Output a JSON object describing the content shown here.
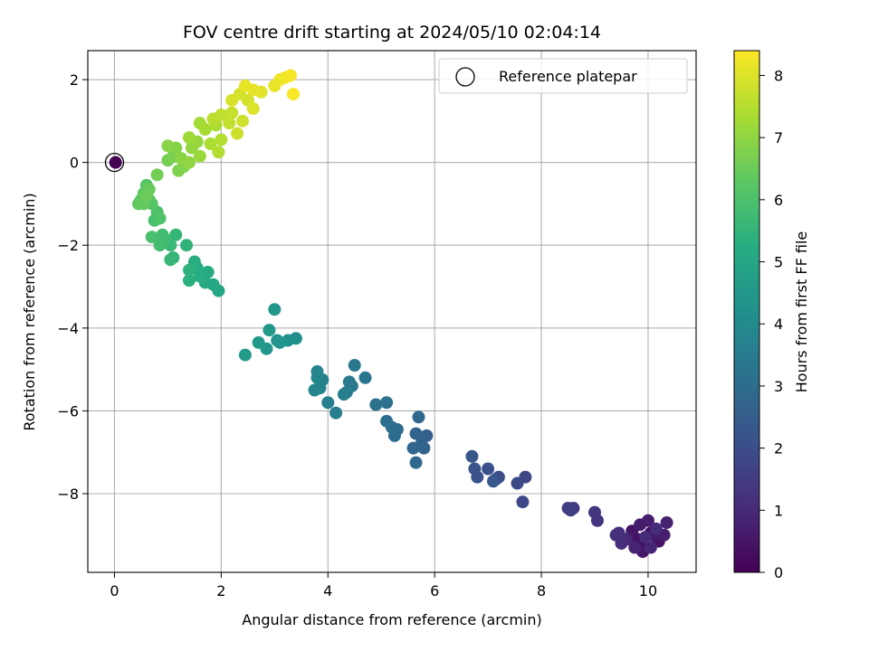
{
  "chart_data": {
    "type": "scatter",
    "title": "FOV centre drift starting at 2024/05/10 02:04:14",
    "xlabel": "Angular distance from reference (arcmin)",
    "ylabel": "Rotation from reference (arcmin)",
    "xlim": [
      -0.5,
      10.9
    ],
    "ylim": [
      -9.9,
      2.7
    ],
    "xticks": [
      0,
      2,
      4,
      6,
      8,
      10
    ],
    "yticks": [
      2,
      0,
      -2,
      -4,
      -6,
      -8
    ],
    "grid": true,
    "legend": {
      "label": "Reference platepar",
      "location": "upper right"
    },
    "reference_point": {
      "x": 0,
      "y": 0
    },
    "colorbar": {
      "label": "Hours from first FF file",
      "colormap": "viridis",
      "range": [
        0,
        8.4
      ],
      "ticks": [
        0,
        1,
        2,
        3,
        4,
        5,
        6,
        7,
        8
      ]
    },
    "points": [
      {
        "x": 0.02,
        "y": 0.0,
        "c": 0.0
      },
      {
        "x": 9.95,
        "y": -9.25,
        "c": 0.3
      },
      {
        "x": 10.05,
        "y": -8.95,
        "c": 0.35
      },
      {
        "x": 9.8,
        "y": -9.1,
        "c": 0.4
      },
      {
        "x": 10.2,
        "y": -9.15,
        "c": 0.45
      },
      {
        "x": 9.7,
        "y": -8.9,
        "c": 0.5
      },
      {
        "x": 9.9,
        "y": -9.4,
        "c": 0.55
      },
      {
        "x": 10.1,
        "y": -9.0,
        "c": 0.6
      },
      {
        "x": 9.85,
        "y": -8.75,
        "c": 0.65
      },
      {
        "x": 10.0,
        "y": -8.65,
        "c": 0.7
      },
      {
        "x": 10.3,
        "y": -9.0,
        "c": 0.75
      },
      {
        "x": 10.35,
        "y": -8.7,
        "c": 0.8
      },
      {
        "x": 9.75,
        "y": -9.3,
        "c": 0.85
      },
      {
        "x": 10.05,
        "y": -9.3,
        "c": 0.9
      },
      {
        "x": 9.6,
        "y": -9.1,
        "c": 0.95
      },
      {
        "x": 9.95,
        "y": -9.05,
        "c": 1.0
      },
      {
        "x": 10.15,
        "y": -8.85,
        "c": 1.05
      },
      {
        "x": 9.5,
        "y": -9.2,
        "c": 1.1
      },
      {
        "x": 9.4,
        "y": -9.0,
        "c": 1.15
      },
      {
        "x": 9.45,
        "y": -8.95,
        "c": 1.2
      },
      {
        "x": 9.05,
        "y": -8.65,
        "c": 1.3
      },
      {
        "x": 9.0,
        "y": -8.45,
        "c": 1.35
      },
      {
        "x": 8.6,
        "y": -8.35,
        "c": 1.45
      },
      {
        "x": 8.5,
        "y": -8.35,
        "c": 1.5
      },
      {
        "x": 8.55,
        "y": -8.4,
        "c": 1.55
      },
      {
        "x": 7.7,
        "y": -7.6,
        "c": 1.8
      },
      {
        "x": 7.65,
        "y": -8.2,
        "c": 1.85
      },
      {
        "x": 7.55,
        "y": -7.75,
        "c": 1.9
      },
      {
        "x": 7.15,
        "y": -7.65,
        "c": 2.0
      },
      {
        "x": 7.2,
        "y": -7.6,
        "c": 2.05
      },
      {
        "x": 7.0,
        "y": -7.4,
        "c": 2.1
      },
      {
        "x": 6.8,
        "y": -7.6,
        "c": 2.15
      },
      {
        "x": 6.75,
        "y": -7.4,
        "c": 2.2
      },
      {
        "x": 6.7,
        "y": -7.1,
        "c": 2.25
      },
      {
        "x": 7.1,
        "y": -7.7,
        "c": 2.3
      },
      {
        "x": 5.85,
        "y": -6.6,
        "c": 2.6
      },
      {
        "x": 5.8,
        "y": -6.9,
        "c": 2.65
      },
      {
        "x": 5.65,
        "y": -6.55,
        "c": 2.7
      },
      {
        "x": 5.75,
        "y": -6.8,
        "c": 2.75
      },
      {
        "x": 5.6,
        "y": -6.9,
        "c": 2.8
      },
      {
        "x": 5.65,
        "y": -7.25,
        "c": 2.85
      },
      {
        "x": 5.7,
        "y": -6.15,
        "c": 2.9
      },
      {
        "x": 5.3,
        "y": -6.45,
        "c": 2.95
      },
      {
        "x": 5.25,
        "y": -6.6,
        "c": 3.0
      },
      {
        "x": 5.2,
        "y": -6.4,
        "c": 3.05
      },
      {
        "x": 5.1,
        "y": -6.25,
        "c": 3.1
      },
      {
        "x": 5.1,
        "y": -5.8,
        "c": 3.15
      },
      {
        "x": 4.9,
        "y": -5.85,
        "c": 3.2
      },
      {
        "x": 4.7,
        "y": -5.2,
        "c": 3.3
      },
      {
        "x": 4.5,
        "y": -4.9,
        "c": 3.35
      },
      {
        "x": 4.45,
        "y": -5.4,
        "c": 3.4
      },
      {
        "x": 4.4,
        "y": -5.3,
        "c": 3.45
      },
      {
        "x": 4.35,
        "y": -5.55,
        "c": 3.5
      },
      {
        "x": 4.3,
        "y": -5.6,
        "c": 3.55
      },
      {
        "x": 4.15,
        "y": -6.05,
        "c": 3.6
      },
      {
        "x": 4.0,
        "y": -5.8,
        "c": 3.65
      },
      {
        "x": 3.9,
        "y": -5.25,
        "c": 3.7
      },
      {
        "x": 3.85,
        "y": -5.45,
        "c": 3.75
      },
      {
        "x": 3.8,
        "y": -5.05,
        "c": 3.8
      },
      {
        "x": 3.75,
        "y": -5.5,
        "c": 3.85
      },
      {
        "x": 3.8,
        "y": -5.2,
        "c": 3.9
      },
      {
        "x": 3.4,
        "y": -4.25,
        "c": 4.2
      },
      {
        "x": 3.25,
        "y": -4.3,
        "c": 4.25
      },
      {
        "x": 3.05,
        "y": -4.3,
        "c": 4.3
      },
      {
        "x": 3.1,
        "y": -4.35,
        "c": 4.35
      },
      {
        "x": 3.0,
        "y": -3.55,
        "c": 4.4
      },
      {
        "x": 2.9,
        "y": -4.05,
        "c": 4.45
      },
      {
        "x": 2.85,
        "y": -4.5,
        "c": 4.5
      },
      {
        "x": 2.7,
        "y": -4.35,
        "c": 4.55
      },
      {
        "x": 2.45,
        "y": -4.65,
        "c": 4.6
      },
      {
        "x": 1.95,
        "y": -3.1,
        "c": 5.0
      },
      {
        "x": 1.85,
        "y": -2.95,
        "c": 5.05
      },
      {
        "x": 1.7,
        "y": -2.9,
        "c": 5.1
      },
      {
        "x": 1.75,
        "y": -2.65,
        "c": 5.15
      },
      {
        "x": 1.55,
        "y": -2.55,
        "c": 5.2
      },
      {
        "x": 1.6,
        "y": -2.75,
        "c": 5.25
      },
      {
        "x": 1.5,
        "y": -2.4,
        "c": 5.3
      },
      {
        "x": 1.4,
        "y": -2.85,
        "c": 5.35
      },
      {
        "x": 1.4,
        "y": -2.6,
        "c": 5.4
      },
      {
        "x": 1.35,
        "y": -2.0,
        "c": 5.45
      },
      {
        "x": 1.1,
        "y": -2.3,
        "c": 5.5
      },
      {
        "x": 1.15,
        "y": -1.75,
        "c": 5.55
      },
      {
        "x": 1.05,
        "y": -2.35,
        "c": 5.6
      },
      {
        "x": 1.05,
        "y": -2.0,
        "c": 5.65
      },
      {
        "x": 0.95,
        "y": -1.85,
        "c": 5.7
      },
      {
        "x": 0.9,
        "y": -1.95,
        "c": 5.75
      },
      {
        "x": 0.9,
        "y": -1.75,
        "c": 5.8
      },
      {
        "x": 0.85,
        "y": -2.0,
        "c": 5.85
      },
      {
        "x": 0.7,
        "y": -1.8,
        "c": 5.9
      },
      {
        "x": 0.75,
        "y": -1.4,
        "c": 5.95
      },
      {
        "x": 0.8,
        "y": -1.2,
        "c": 6.0
      },
      {
        "x": 0.85,
        "y": -1.35,
        "c": 6.05
      },
      {
        "x": 0.65,
        "y": -0.9,
        "c": 6.1
      },
      {
        "x": 0.7,
        "y": -1.0,
        "c": 6.15
      },
      {
        "x": 0.6,
        "y": -0.55,
        "c": 6.2
      },
      {
        "x": 0.55,
        "y": -0.75,
        "c": 6.25
      },
      {
        "x": 0.5,
        "y": -0.9,
        "c": 6.3
      },
      {
        "x": 0.45,
        "y": -1.0,
        "c": 6.35
      },
      {
        "x": 0.55,
        "y": -1.0,
        "c": 6.4
      },
      {
        "x": 0.65,
        "y": -0.65,
        "c": 6.45
      },
      {
        "x": 0.6,
        "y": -0.8,
        "c": 6.5
      },
      {
        "x": 0.8,
        "y": -0.3,
        "c": 6.6
      },
      {
        "x": 1.0,
        "y": 0.05,
        "c": 6.65
      },
      {
        "x": 1.1,
        "y": 0.15,
        "c": 6.7
      },
      {
        "x": 1.2,
        "y": -0.2,
        "c": 6.75
      },
      {
        "x": 1.3,
        "y": -0.1,
        "c": 6.8
      },
      {
        "x": 1.15,
        "y": 0.35,
        "c": 6.85
      },
      {
        "x": 1.0,
        "y": 0.4,
        "c": 6.9
      },
      {
        "x": 1.25,
        "y": 0.1,
        "c": 6.95
      },
      {
        "x": 1.4,
        "y": 0.0,
        "c": 7.0
      },
      {
        "x": 1.45,
        "y": 0.35,
        "c": 7.05
      },
      {
        "x": 1.55,
        "y": 0.5,
        "c": 7.1
      },
      {
        "x": 1.6,
        "y": 0.15,
        "c": 7.15
      },
      {
        "x": 1.4,
        "y": 0.6,
        "c": 7.2
      },
      {
        "x": 1.6,
        "y": 0.95,
        "c": 7.25
      },
      {
        "x": 1.7,
        "y": 0.8,
        "c": 7.3
      },
      {
        "x": 1.8,
        "y": 0.45,
        "c": 7.35
      },
      {
        "x": 1.9,
        "y": 0.9,
        "c": 7.4
      },
      {
        "x": 1.95,
        "y": 0.25,
        "c": 7.45
      },
      {
        "x": 2.0,
        "y": 0.55,
        "c": 7.5
      },
      {
        "x": 1.85,
        "y": 1.05,
        "c": 7.55
      },
      {
        "x": 2.0,
        "y": 1.15,
        "c": 7.6
      },
      {
        "x": 2.15,
        "y": 0.95,
        "c": 7.65
      },
      {
        "x": 2.2,
        "y": 1.2,
        "c": 7.7
      },
      {
        "x": 2.3,
        "y": 0.7,
        "c": 7.75
      },
      {
        "x": 2.4,
        "y": 1.0,
        "c": 7.8
      },
      {
        "x": 2.5,
        "y": 1.5,
        "c": 7.85
      },
      {
        "x": 2.35,
        "y": 1.65,
        "c": 7.9
      },
      {
        "x": 2.2,
        "y": 1.5,
        "c": 7.95
      },
      {
        "x": 2.6,
        "y": 1.3,
        "c": 8.0
      },
      {
        "x": 2.75,
        "y": 1.7,
        "c": 8.05
      },
      {
        "x": 2.6,
        "y": 1.75,
        "c": 8.1
      },
      {
        "x": 2.45,
        "y": 1.85,
        "c": 8.12
      },
      {
        "x": 3.0,
        "y": 1.85,
        "c": 8.15
      },
      {
        "x": 3.1,
        "y": 2.0,
        "c": 8.2
      },
      {
        "x": 3.2,
        "y": 2.05,
        "c": 8.25
      },
      {
        "x": 3.3,
        "y": 2.1,
        "c": 8.3
      },
      {
        "x": 3.35,
        "y": 1.65,
        "c": 8.35
      }
    ]
  }
}
